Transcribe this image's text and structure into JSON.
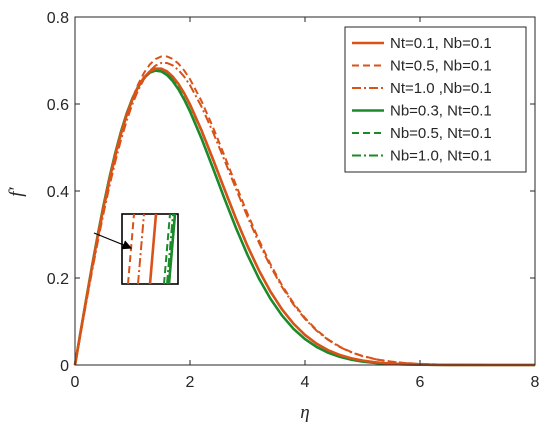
{
  "chart_data": {
    "type": "line",
    "title": "",
    "xlabel": "η",
    "ylabel": "f′",
    "xlim": [
      0,
      8
    ],
    "ylim": [
      0,
      0.8
    ],
    "xticks": [
      "0",
      "2",
      "4",
      "6",
      "8"
    ],
    "yticks": [
      "0",
      "0.2",
      "0.4",
      "0.6",
      "0.8"
    ],
    "grid": false,
    "legend_position": "top-right",
    "colors": {
      "orange": "#D95319",
      "green": "#1B8A2A",
      "axis": "#262626"
    },
    "x": [
      0,
      0.1,
      0.2,
      0.3,
      0.4,
      0.5,
      0.6,
      0.7,
      0.8,
      0.9,
      1.0,
      1.1,
      1.2,
      1.3,
      1.4,
      1.5,
      1.6,
      1.7,
      1.8,
      1.9,
      2.0,
      2.2,
      2.4,
      2.6,
      2.8,
      3.0,
      3.2,
      3.4,
      3.6,
      3.8,
      4.0,
      4.2,
      4.4,
      4.6,
      4.8,
      5.0,
      5.25,
      5.5,
      5.75,
      6.0,
      6.25,
      6.5,
      6.75,
      7.0,
      7.25,
      7.5,
      7.75,
      8.0
    ],
    "series": [
      {
        "name": "Nt=0.1, Nb=0.1",
        "color": "orange",
        "dash": "solid",
        "peak": 0.682
      },
      {
        "name": "Nt=0.5, Nb=0.1",
        "color": "orange",
        "dash": "dashed",
        "peak": 0.71
      },
      {
        "name": "Nt=1.0 ,Nb=0.1",
        "color": "orange",
        "dash": "dashdot",
        "peak": 0.695
      },
      {
        "name": "Nb=0.3, Nt=0.1",
        "color": "green",
        "dash": "solid",
        "peak": 0.677
      },
      {
        "name": "Nb=0.5, Nt=0.1",
        "color": "green",
        "dash": "dashed",
        "peak": 0.68
      },
      {
        "name": "Nb=1.0, Nt=0.1",
        "color": "green",
        "dash": "dashdot",
        "peak": 0.679
      }
    ],
    "inset": {
      "type": "zoom",
      "description_visible": false
    }
  }
}
